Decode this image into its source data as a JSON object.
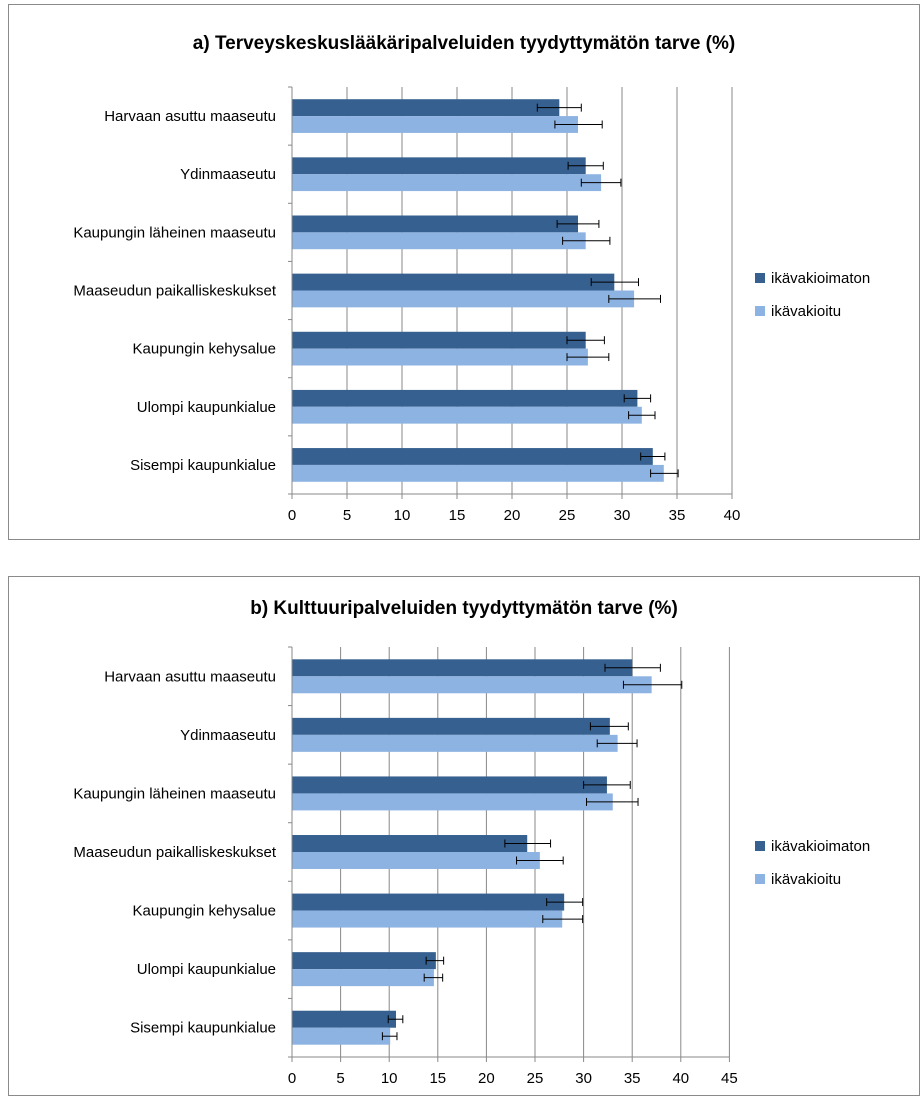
{
  "colors": {
    "uncorrected": "#36608f",
    "corrected": "#8db3e2",
    "grid": "#888888",
    "error": "#000000"
  },
  "chart_data": [
    {
      "type": "bar",
      "orientation": "horizontal",
      "title": "a) Terveyskeskuslääkäripalveluiden tyydyttymätön tarve (%)",
      "categories": [
        "Harvaan asuttu maaseutu",
        "Ydinmaaseutu",
        "Kaupungin läheinen maaseutu",
        "Maaseudun paikalliskeskukset",
        "Kaupungin kehysalue",
        "Ulompi kaupunkialue",
        "Sisempi kaupunkialue"
      ],
      "series": [
        {
          "name": "ikävakioimaton",
          "values": [
            24.3,
            26.7,
            26.0,
            29.3,
            26.7,
            31.4,
            32.8
          ],
          "err_low": [
            22.3,
            25.1,
            24.1,
            27.2,
            25.0,
            30.2,
            31.7
          ],
          "err_high": [
            26.3,
            28.3,
            27.9,
            31.5,
            28.4,
            32.6,
            33.9
          ]
        },
        {
          "name": "ikävakioitu",
          "values": [
            26.0,
            28.1,
            26.7,
            31.1,
            26.9,
            31.8,
            33.8
          ],
          "err_low": [
            23.9,
            26.3,
            24.6,
            28.8,
            25.0,
            30.6,
            32.6
          ],
          "err_high": [
            28.2,
            29.9,
            28.9,
            33.5,
            28.8,
            33.0,
            35.1
          ]
        }
      ],
      "xlim": [
        0,
        40
      ],
      "xticks": [
        0,
        5,
        10,
        15,
        20,
        25,
        30,
        35,
        40
      ],
      "grid": "vertical",
      "legend": "right"
    },
    {
      "type": "bar",
      "orientation": "horizontal",
      "title": "b) Kulttuuripalveluiden tyydyttymätön tarve (%)",
      "categories": [
        "Harvaan asuttu maaseutu",
        "Ydinmaaseutu",
        "Kaupungin läheinen maaseutu",
        "Maaseudun paikalliskeskukset",
        "Kaupungin kehysalue",
        "Ulompi kaupunkialue",
        "Sisempi kaupunkialue"
      ],
      "series": [
        {
          "name": "ikävakioimaton",
          "values": [
            35.0,
            32.7,
            32.4,
            24.2,
            28.0,
            14.8,
            10.7
          ],
          "err_low": [
            32.2,
            30.7,
            30.0,
            21.9,
            26.2,
            13.8,
            9.9
          ],
          "err_high": [
            37.9,
            34.6,
            34.8,
            26.6,
            29.9,
            15.6,
            11.4
          ]
        },
        {
          "name": "ikävakioitu",
          "values": [
            37.0,
            33.5,
            33.0,
            25.5,
            27.8,
            14.6,
            10.1
          ],
          "err_low": [
            34.1,
            31.4,
            30.3,
            23.1,
            25.8,
            13.6,
            9.3
          ],
          "err_high": [
            40.1,
            35.5,
            35.6,
            27.9,
            29.9,
            15.5,
            10.8
          ]
        }
      ],
      "xlim": [
        0,
        45
      ],
      "xticks": [
        0,
        5,
        10,
        15,
        20,
        25,
        30,
        35,
        40,
        45
      ],
      "grid": "vertical",
      "legend": "right"
    }
  ]
}
